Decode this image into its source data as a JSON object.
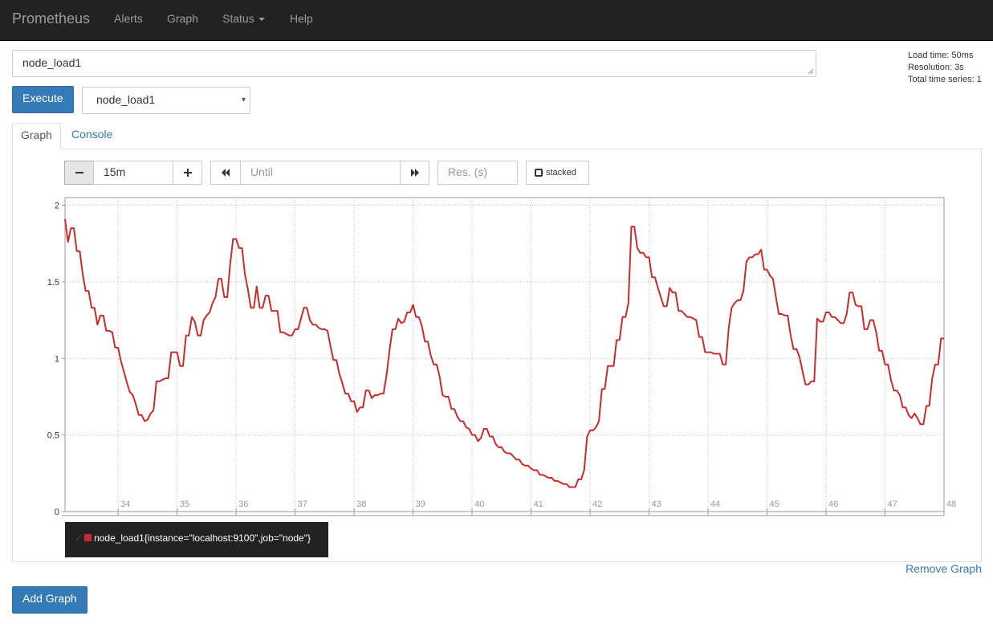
{
  "navbar": {
    "brand": "Prometheus",
    "items": [
      {
        "label": "Alerts"
      },
      {
        "label": "Graph"
      },
      {
        "label": "Status"
      },
      {
        "label": "Help"
      }
    ]
  },
  "query": {
    "expression": "node_load1"
  },
  "stats": {
    "load_time": "Load time: 50ms",
    "resolution": "Resolution: 3s",
    "total_series": "Total time series: 1"
  },
  "execute_label": "Execute",
  "metric_select": {
    "selected": "node_load1"
  },
  "tabs": [
    {
      "label": "Graph",
      "active": true
    },
    {
      "label": "Console",
      "active": false
    }
  ],
  "controls": {
    "range_value": "15m",
    "until_placeholder": "Until",
    "resolution_placeholder": "Res. (s)",
    "stacked_label": "stacked"
  },
  "chart_data": {
    "type": "line",
    "xlim": [
      33.1,
      48
    ],
    "ylim": [
      0,
      2.05
    ],
    "x_ticks": [
      34,
      35,
      36,
      37,
      38,
      39,
      40,
      41,
      42,
      43,
      44,
      45,
      46,
      47,
      48
    ],
    "y_ticks": [
      0,
      0.5,
      1,
      1.5,
      2
    ],
    "y_tick_labels": [
      "0",
      "0.5",
      "1",
      "1.5",
      "2"
    ],
    "grid": true,
    "series": [
      {
        "name": "node_load1{instance=\"localhost:9100\",job=\"node\"}",
        "color": "#cb2b2b",
        "points": [
          [
            33.1,
            1.91
          ],
          [
            33.15,
            1.76
          ],
          [
            33.2,
            1.85
          ],
          [
            33.25,
            1.85
          ],
          [
            33.3,
            1.7
          ],
          [
            33.35,
            1.7
          ],
          [
            33.4,
            1.55
          ],
          [
            33.45,
            1.44
          ],
          [
            33.5,
            1.44
          ],
          [
            33.55,
            1.33
          ],
          [
            33.6,
            1.33
          ],
          [
            33.65,
            1.22
          ],
          [
            33.7,
            1.28
          ],
          [
            33.75,
            1.28
          ],
          [
            33.8,
            1.18
          ],
          [
            33.85,
            1.18
          ],
          [
            33.9,
            1.17
          ],
          [
            33.95,
            1.07
          ],
          [
            34.0,
            1.07
          ],
          [
            34.05,
            0.98
          ],
          [
            34.1,
            0.91
          ],
          [
            34.15,
            0.84
          ],
          [
            34.2,
            0.78
          ],
          [
            34.25,
            0.76
          ],
          [
            34.3,
            0.7
          ],
          [
            34.35,
            0.63
          ],
          [
            34.4,
            0.63
          ],
          [
            34.45,
            0.59
          ],
          [
            34.5,
            0.6
          ],
          [
            34.55,
            0.64
          ],
          [
            34.6,
            0.66
          ],
          [
            34.65,
            0.85
          ],
          [
            34.7,
            0.85
          ],
          [
            34.75,
            0.86
          ],
          [
            34.8,
            0.87
          ],
          [
            34.85,
            0.87
          ],
          [
            34.9,
            1.04
          ],
          [
            34.95,
            1.04
          ],
          [
            35.0,
            1.04
          ],
          [
            35.05,
            0.95
          ],
          [
            35.1,
            0.95
          ],
          [
            35.15,
            1.15
          ],
          [
            35.2,
            1.15
          ],
          [
            35.25,
            1.27
          ],
          [
            35.3,
            1.24
          ],
          [
            35.35,
            1.15
          ],
          [
            35.4,
            1.15
          ],
          [
            35.45,
            1.25
          ],
          [
            35.5,
            1.28
          ],
          [
            35.55,
            1.3
          ],
          [
            35.6,
            1.36
          ],
          [
            35.65,
            1.4
          ],
          [
            35.7,
            1.52
          ],
          [
            35.75,
            1.52
          ],
          [
            35.8,
            1.4
          ],
          [
            35.85,
            1.4
          ],
          [
            35.9,
            1.62
          ],
          [
            35.95,
            1.78
          ],
          [
            36.0,
            1.78
          ],
          [
            36.05,
            1.72
          ],
          [
            36.1,
            1.72
          ],
          [
            36.15,
            1.55
          ],
          [
            36.2,
            1.45
          ],
          [
            36.25,
            1.33
          ],
          [
            36.3,
            1.33
          ],
          [
            36.35,
            1.47
          ],
          [
            36.4,
            1.33
          ],
          [
            36.45,
            1.33
          ],
          [
            36.5,
            1.41
          ],
          [
            36.55,
            1.41
          ],
          [
            36.6,
            1.31
          ],
          [
            36.65,
            1.31
          ],
          [
            36.7,
            1.31
          ],
          [
            36.75,
            1.17
          ],
          [
            36.8,
            1.17
          ],
          [
            36.85,
            1.16
          ],
          [
            36.9,
            1.15
          ],
          [
            36.95,
            1.15
          ],
          [
            37.0,
            1.19
          ],
          [
            37.05,
            1.19
          ],
          [
            37.1,
            1.26
          ],
          [
            37.15,
            1.33
          ],
          [
            37.2,
            1.33
          ],
          [
            37.25,
            1.25
          ],
          [
            37.3,
            1.22
          ],
          [
            37.35,
            1.22
          ],
          [
            37.4,
            1.2
          ],
          [
            37.45,
            1.19
          ],
          [
            37.5,
            1.19
          ],
          [
            37.55,
            1.18
          ],
          [
            37.6,
            1.08
          ],
          [
            37.65,
            0.99
          ],
          [
            37.7,
            0.99
          ],
          [
            37.75,
            0.9
          ],
          [
            37.8,
            0.84
          ],
          [
            37.85,
            0.77
          ],
          [
            37.9,
            0.77
          ],
          [
            37.95,
            0.72
          ],
          [
            38.0,
            0.72
          ],
          [
            38.05,
            0.65
          ],
          [
            38.1,
            0.68
          ],
          [
            38.15,
            0.68
          ],
          [
            38.2,
            0.79
          ],
          [
            38.25,
            0.79
          ],
          [
            38.3,
            0.74
          ],
          [
            38.35,
            0.76
          ],
          [
            38.4,
            0.76
          ],
          [
            38.45,
            0.77
          ],
          [
            38.5,
            0.77
          ],
          [
            38.55,
            0.89
          ],
          [
            38.6,
            1.05
          ],
          [
            38.65,
            1.19
          ],
          [
            38.7,
            1.19
          ],
          [
            38.75,
            1.26
          ],
          [
            38.8,
            1.23
          ],
          [
            38.85,
            1.24
          ],
          [
            38.9,
            1.3
          ],
          [
            38.95,
            1.3
          ],
          [
            39.0,
            1.35
          ],
          [
            39.05,
            1.27
          ],
          [
            39.1,
            1.27
          ],
          [
            39.15,
            1.21
          ],
          [
            39.2,
            1.11
          ],
          [
            39.25,
            1.11
          ],
          [
            39.3,
            1.02
          ],
          [
            39.35,
            0.96
          ],
          [
            39.4,
            0.96
          ],
          [
            39.45,
            0.88
          ],
          [
            39.5,
            0.76
          ],
          [
            39.55,
            0.75
          ],
          [
            39.6,
            0.75
          ],
          [
            39.65,
            0.67
          ],
          [
            39.7,
            0.67
          ],
          [
            39.75,
            0.62
          ],
          [
            39.8,
            0.59
          ],
          [
            39.85,
            0.59
          ],
          [
            39.9,
            0.55
          ],
          [
            39.95,
            0.54
          ],
          [
            40.0,
            0.5
          ],
          [
            40.05,
            0.5
          ],
          [
            40.1,
            0.46
          ],
          [
            40.15,
            0.48
          ],
          [
            40.2,
            0.54
          ],
          [
            40.25,
            0.54
          ],
          [
            40.3,
            0.49
          ],
          [
            40.35,
            0.49
          ],
          [
            40.4,
            0.44
          ],
          [
            40.45,
            0.42
          ],
          [
            40.5,
            0.42
          ],
          [
            40.55,
            0.39
          ],
          [
            40.6,
            0.38
          ],
          [
            40.65,
            0.38
          ],
          [
            40.7,
            0.36
          ],
          [
            40.75,
            0.34
          ],
          [
            40.8,
            0.34
          ],
          [
            40.85,
            0.31
          ],
          [
            40.9,
            0.3
          ],
          [
            40.95,
            0.3
          ],
          [
            41.0,
            0.28
          ],
          [
            41.05,
            0.27
          ],
          [
            41.1,
            0.27
          ],
          [
            41.15,
            0.24
          ],
          [
            41.2,
            0.24
          ],
          [
            41.25,
            0.23
          ],
          [
            41.3,
            0.22
          ],
          [
            41.35,
            0.22
          ],
          [
            41.4,
            0.2
          ],
          [
            41.45,
            0.2
          ],
          [
            41.5,
            0.19
          ],
          [
            41.55,
            0.18
          ],
          [
            41.6,
            0.18
          ],
          [
            41.65,
            0.16
          ],
          [
            41.7,
            0.16
          ],
          [
            41.75,
            0.16
          ],
          [
            41.8,
            0.21
          ],
          [
            41.85,
            0.21
          ],
          [
            41.9,
            0.27
          ],
          [
            41.95,
            0.49
          ],
          [
            42.0,
            0.53
          ],
          [
            42.05,
            0.53
          ],
          [
            42.1,
            0.55
          ],
          [
            42.15,
            0.59
          ],
          [
            42.2,
            0.8
          ],
          [
            42.25,
            0.8
          ],
          [
            42.3,
            0.95
          ],
          [
            42.35,
            0.95
          ],
          [
            42.4,
            0.95
          ],
          [
            42.45,
            1.12
          ],
          [
            42.5,
            1.12
          ],
          [
            42.55,
            1.27
          ],
          [
            42.6,
            1.27
          ],
          [
            42.65,
            1.36
          ],
          [
            42.7,
            1.86
          ],
          [
            42.75,
            1.86
          ],
          [
            42.8,
            1.72
          ],
          [
            42.85,
            1.69
          ],
          [
            42.9,
            1.69
          ],
          [
            42.95,
            1.66
          ],
          [
            43.0,
            1.66
          ],
          [
            43.05,
            1.53
          ],
          [
            43.1,
            1.53
          ],
          [
            43.15,
            1.46
          ],
          [
            43.2,
            1.4
          ],
          [
            43.25,
            1.34
          ],
          [
            43.3,
            1.34
          ],
          [
            43.35,
            1.46
          ],
          [
            43.4,
            1.43
          ],
          [
            43.45,
            1.43
          ],
          [
            43.5,
            1.31
          ],
          [
            43.55,
            1.31
          ],
          [
            43.6,
            1.29
          ],
          [
            43.65,
            1.27
          ],
          [
            43.7,
            1.27
          ],
          [
            43.75,
            1.26
          ],
          [
            43.8,
            1.25
          ],
          [
            43.85,
            1.14
          ],
          [
            43.9,
            1.14
          ],
          [
            43.95,
            1.04
          ],
          [
            44.0,
            1.04
          ],
          [
            44.05,
            1.04
          ],
          [
            44.1,
            1.03
          ],
          [
            44.15,
            1.03
          ],
          [
            44.2,
            1.03
          ],
          [
            44.25,
            0.96
          ],
          [
            44.3,
            0.96
          ],
          [
            44.35,
            1.2
          ],
          [
            44.4,
            1.33
          ],
          [
            44.45,
            1.36
          ],
          [
            44.5,
            1.38
          ],
          [
            44.55,
            1.38
          ],
          [
            44.6,
            1.44
          ],
          [
            44.65,
            1.63
          ],
          [
            44.7,
            1.66
          ],
          [
            44.75,
            1.66
          ],
          [
            44.8,
            1.68
          ],
          [
            44.85,
            1.68
          ],
          [
            44.9,
            1.71
          ],
          [
            44.95,
            1.58
          ],
          [
            45.0,
            1.58
          ],
          [
            45.05,
            1.54
          ],
          [
            45.1,
            1.52
          ],
          [
            45.15,
            1.4
          ],
          [
            45.2,
            1.29
          ],
          [
            45.25,
            1.29
          ],
          [
            45.3,
            1.28
          ],
          [
            45.35,
            1.28
          ],
          [
            45.4,
            1.15
          ],
          [
            45.45,
            1.06
          ],
          [
            45.5,
            1.06
          ],
          [
            45.55,
            1.01
          ],
          [
            45.6,
            0.92
          ],
          [
            45.65,
            0.83
          ],
          [
            45.7,
            0.83
          ],
          [
            45.75,
            0.85
          ],
          [
            45.8,
            0.85
          ],
          [
            45.85,
            1.26
          ],
          [
            45.9,
            1.24
          ],
          [
            45.95,
            1.24
          ],
          [
            46.0,
            1.3
          ],
          [
            46.05,
            1.3
          ],
          [
            46.1,
            1.27
          ],
          [
            46.15,
            1.27
          ],
          [
            46.2,
            1.25
          ],
          [
            46.25,
            1.23
          ],
          [
            46.3,
            1.23
          ],
          [
            46.35,
            1.29
          ],
          [
            46.4,
            1.43
          ],
          [
            46.45,
            1.43
          ],
          [
            46.5,
            1.35
          ],
          [
            46.55,
            1.34
          ],
          [
            46.6,
            1.34
          ],
          [
            46.65,
            1.19
          ],
          [
            46.7,
            1.19
          ],
          [
            46.75,
            1.25
          ],
          [
            46.8,
            1.25
          ],
          [
            46.85,
            1.17
          ],
          [
            46.9,
            1.05
          ],
          [
            46.95,
            1.05
          ],
          [
            47.0,
            0.96
          ],
          [
            47.05,
            0.96
          ],
          [
            47.1,
            0.86
          ],
          [
            47.15,
            0.79
          ],
          [
            47.2,
            0.79
          ],
          [
            47.25,
            0.76
          ],
          [
            47.3,
            0.68
          ],
          [
            47.35,
            0.68
          ],
          [
            47.4,
            0.63
          ],
          [
            47.45,
            0.61
          ],
          [
            47.5,
            0.64
          ],
          [
            47.55,
            0.61
          ],
          [
            47.6,
            0.57
          ],
          [
            47.65,
            0.57
          ],
          [
            47.7,
            0.69
          ],
          [
            47.75,
            0.69
          ],
          [
            47.8,
            0.87
          ],
          [
            47.85,
            0.96
          ],
          [
            47.9,
            0.96
          ],
          [
            47.95,
            1.13
          ],
          [
            48.0,
            1.13
          ]
        ]
      }
    ],
    "legend": "bottom-left"
  },
  "remove_graph_label": "Remove Graph",
  "add_graph_label": "Add Graph"
}
